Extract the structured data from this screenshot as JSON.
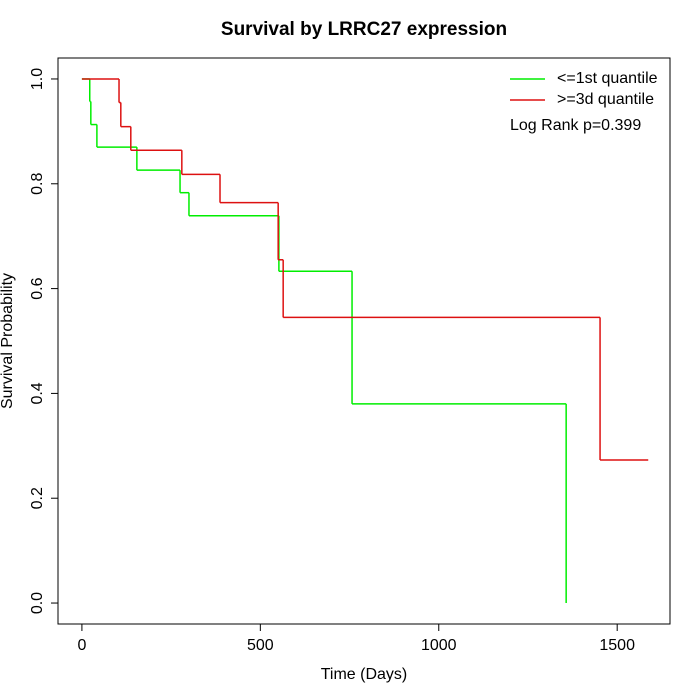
{
  "chart_data": {
    "type": "step",
    "title": "Survival by LRRC27 expression",
    "xlabel": "Time (Days)",
    "ylabel": "Survival Probability",
    "annotation": "Log Rank p=0.399",
    "legend": "top-right",
    "xlim": [
      -67,
      1648
    ],
    "ylim": [
      -0.04,
      1.04
    ],
    "xticks": [
      0,
      500,
      1000,
      1500
    ],
    "yticks": [
      {
        "value": 0,
        "label": "0.0"
      },
      0.2,
      0.4,
      0.6,
      0.8,
      {
        "value": 1,
        "label": "1.0"
      }
    ],
    "series": [
      {
        "name": "<=1st quantile",
        "color": "#00ee00",
        "x": [
          0,
          22,
          25,
          42,
          154,
          275,
          300,
          552,
          757,
          1357
        ],
        "values": [
          1,
          0.957,
          0.913,
          0.87,
          0.826,
          0.783,
          0.739,
          0.633,
          0.38,
          0
        ]
      },
      {
        "name": ">=3d quantile",
        "color": "#dd1111",
        "x": [
          0,
          104,
          109,
          137,
          280,
          387,
          550,
          564,
          1452,
          1587
        ],
        "values": [
          1,
          0.955,
          0.909,
          0.864,
          0.818,
          0.764,
          0.655,
          0.545,
          0.273,
          0.273
        ]
      }
    ]
  }
}
